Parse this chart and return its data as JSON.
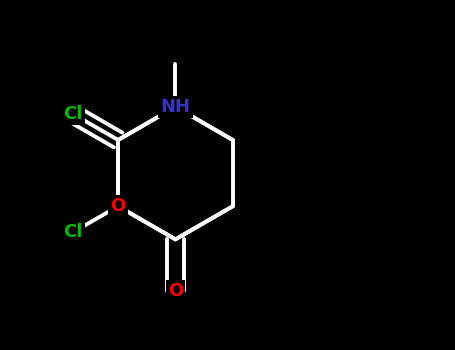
{
  "bg_color": "#000000",
  "bond_color": "#ffffff",
  "N_color": "#3333cc",
  "O_color": "#ff0000",
  "Cl_color": "#00bb00",
  "bond_lw": 2.8,
  "label_fontsize": 13,
  "fig_width": 4.55,
  "fig_height": 3.5,
  "dpi": 100,
  "xlim": [
    -2.4,
    2.4
  ],
  "ylim": [
    -1.85,
    1.85
  ]
}
